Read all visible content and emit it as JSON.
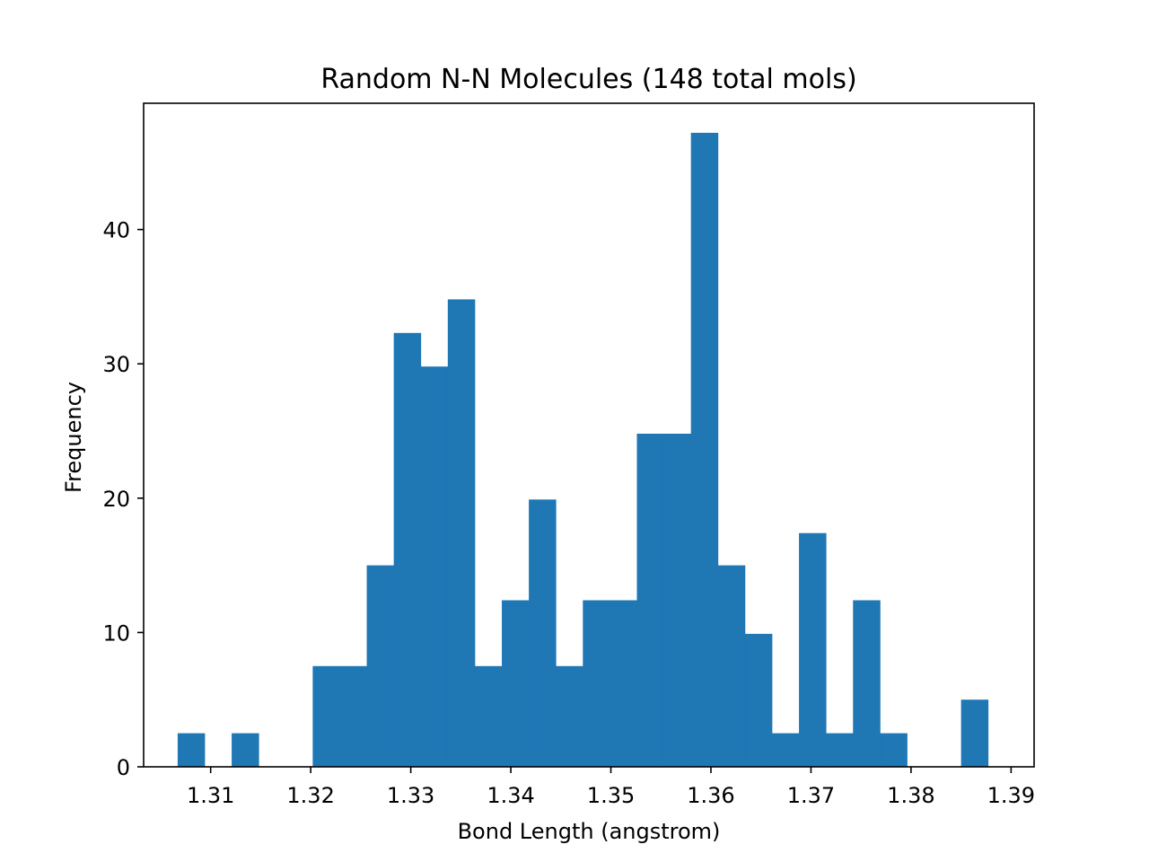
{
  "chart_data": {
    "type": "bar",
    "title": "Random N-N Molecules (148 total mols)",
    "xlabel": "Bond Length (angstrom)",
    "ylabel": "Frequency",
    "xlim": [
      1.3033,
      1.3923
    ],
    "ylim": [
      0,
      49.4
    ],
    "xticks": [
      "1.31",
      "1.32",
      "1.33",
      "1.34",
      "1.35",
      "1.36",
      "1.37",
      "1.38",
      "1.39"
    ],
    "yticks": [
      "0",
      "10",
      "20",
      "30",
      "40"
    ],
    "grid": false,
    "bar_color": "#1f77b4",
    "bin_start": 1.3067,
    "bin_width": 0.0027,
    "values": [
      2.5,
      0,
      2.5,
      0,
      0,
      7.5,
      7.5,
      15,
      32.3,
      29.8,
      34.8,
      7.5,
      12.4,
      19.9,
      7.5,
      12.4,
      12.4,
      24.8,
      24.8,
      47.2,
      15,
      9.9,
      2.5,
      17.4,
      2.5,
      12.4,
      2.5,
      0,
      0,
      5
    ]
  }
}
